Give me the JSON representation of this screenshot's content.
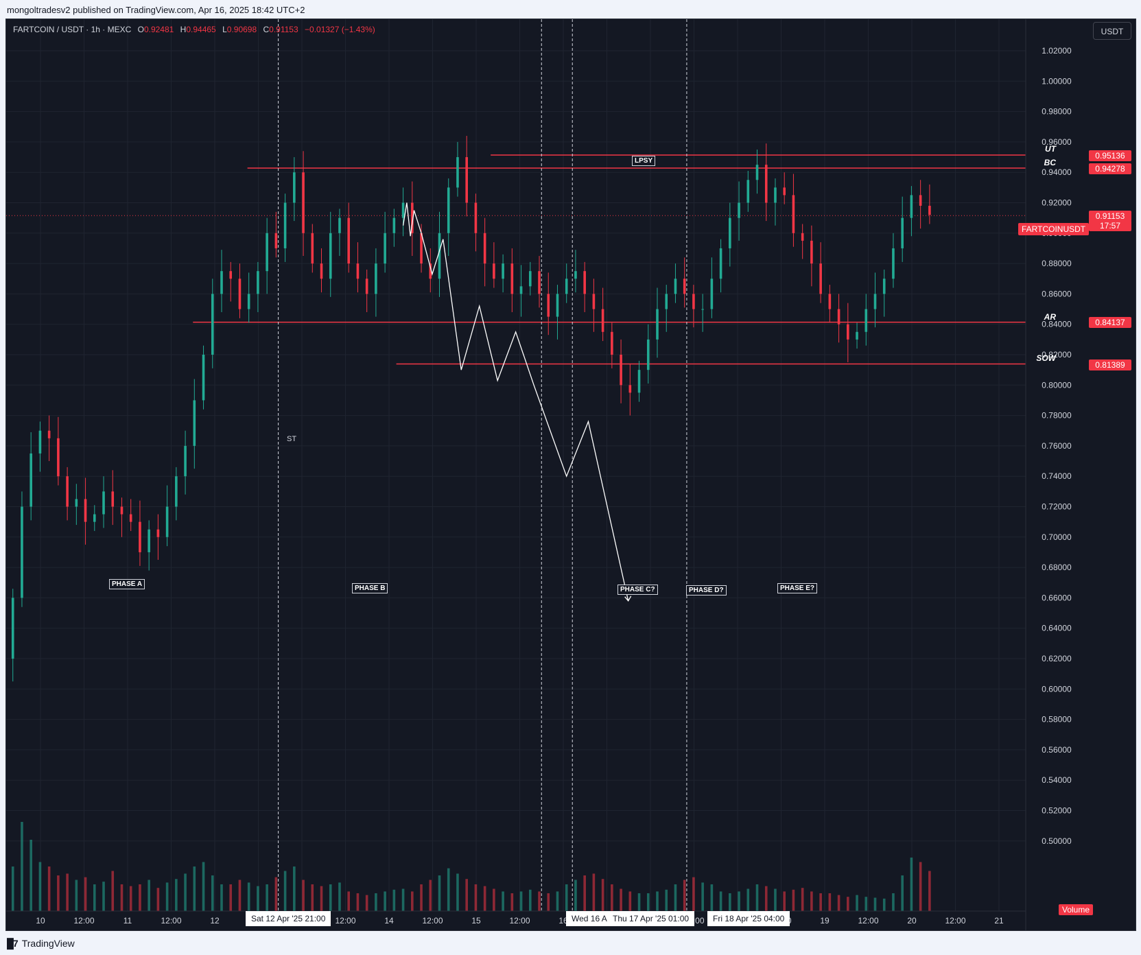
{
  "header": {
    "published": "mongoltradesv2 published on TradingView.com, Apr 16, 2025 18:42 UTC+2"
  },
  "footer": {
    "brand": "TradingView",
    "logo_icon": "tradingview-logo-icon"
  },
  "legend": {
    "symbol": "FARTCOIN / USDT · 1h · MEXC",
    "o_label": "O",
    "o_value": "0.92481",
    "h_label": "H",
    "h_value": "0.94465",
    "l_label": "L",
    "l_value": "0.90698",
    "c_label": "C",
    "c_value": "0.91153",
    "change": "−0.01327 (−1.43%)"
  },
  "currency_button": "USDT",
  "volume_label": "Volume",
  "current_price": {
    "symbol_label": "FARTCOINUSDT",
    "price": "0.91153",
    "countdown": "17:57",
    "value": 0.91153
  },
  "levels": [
    {
      "name": "UT",
      "price": "0.95136",
      "value": 0.95136
    },
    {
      "name": "BC",
      "price": "0.94278",
      "value": 0.94278
    },
    {
      "name": "AR",
      "price": "0.84137",
      "value": 0.84137
    },
    {
      "name": "SOW",
      "price": "0.81389",
      "value": 0.81389
    }
  ],
  "annotations": {
    "lpsy": "LPSY",
    "st": "ST",
    "phases": [
      "PHASE A",
      "PHASE B",
      "PHASE C?",
      "PHASE D?",
      "PHASE E?"
    ]
  },
  "time_cursor_labels": [
    "Sat 12 Apr '25   21:00",
    "Wed 16 A",
    "Thu 17 Apr '25   01:00",
    "Fri 18 Apr '25   04:00"
  ],
  "colors": {
    "up": "#22ab94",
    "down": "#f23645",
    "level_line": "#f23645",
    "background": "#141823",
    "projection": "#ffffff"
  },
  "chart_data": {
    "type": "candlestick",
    "symbol": "FARTCOIN / USDT",
    "interval": "1h",
    "exchange": "MEXC",
    "ylim": [
      0.49,
      1.03
    ],
    "y_ticks": [
      "1.02000",
      "1.00000",
      "0.98000",
      "0.96000",
      "0.94000",
      "0.92000",
      "0.90000",
      "0.88000",
      "0.86000",
      "0.84000",
      "0.82000",
      "0.80000",
      "0.78000",
      "0.76000",
      "0.74000",
      "0.72000",
      "0.70000",
      "0.68000",
      "0.66000",
      "0.64000",
      "0.62000",
      "0.60000",
      "0.58000",
      "0.56000",
      "0.54000",
      "0.52000",
      "0.50000"
    ],
    "x_ticks": [
      "10",
      "12:00",
      "11",
      "12:00",
      "12",
      "12:00",
      "13",
      "12:00",
      "14",
      "12:00",
      "15",
      "12:00",
      "16",
      "12:00",
      "17",
      "12:00",
      "18",
      "12:00",
      "19",
      "12:00",
      "20",
      "12:00",
      "21"
    ],
    "x_domain_hours": [
      -17,
      275
    ],
    "candle_hours_start": -17,
    "closes": [
      0.555,
      0.57,
      0.62,
      0.66,
      0.72,
      0.755,
      0.77,
      0.765,
      0.74,
      0.72,
      0.725,
      0.71,
      0.715,
      0.73,
      0.72,
      0.715,
      0.71,
      0.69,
      0.705,
      0.7,
      0.72,
      0.74,
      0.76,
      0.79,
      0.82,
      0.86,
      0.875,
      0.87,
      0.85,
      0.86,
      0.875,
      0.9,
      0.89,
      0.92,
      0.94,
      0.9,
      0.88,
      0.87,
      0.9,
      0.91,
      0.88,
      0.87,
      0.86,
      0.88,
      0.9,
      0.91,
      0.92,
      0.9,
      0.88,
      0.87,
      0.9,
      0.93,
      0.95,
      0.92,
      0.9,
      0.88,
      0.87,
      0.88,
      0.86,
      0.865,
      0.875,
      0.86,
      0.845,
      0.86,
      0.87,
      0.875,
      0.86,
      0.85,
      0.835,
      0.82,
      0.8,
      0.795,
      0.81,
      0.83,
      0.85,
      0.86,
      0.87,
      0.86,
      0.85,
      0.85,
      0.87,
      0.89,
      0.91,
      0.92,
      0.935,
      0.945,
      0.92,
      0.93,
      0.925,
      0.9,
      0.895,
      0.88,
      0.86,
      0.85,
      0.84,
      0.83,
      0.835,
      0.85,
      0.86,
      0.87,
      0.89,
      0.91,
      0.925,
      0.918,
      0.912
    ],
    "volume_unit": "relative",
    "volumes": [
      0.4,
      0.9,
      0.6,
      0.5,
      1.0,
      0.8,
      0.55,
      0.5,
      0.4,
      0.42,
      0.35,
      0.38,
      0.3,
      0.33,
      0.45,
      0.3,
      0.28,
      0.3,
      0.35,
      0.26,
      0.32,
      0.36,
      0.42,
      0.5,
      0.55,
      0.4,
      0.3,
      0.3,
      0.35,
      0.32,
      0.28,
      0.3,
      0.38,
      0.45,
      0.5,
      0.35,
      0.3,
      0.28,
      0.3,
      0.32,
      0.22,
      0.2,
      0.18,
      0.2,
      0.22,
      0.24,
      0.25,
      0.22,
      0.3,
      0.35,
      0.4,
      0.48,
      0.42,
      0.36,
      0.3,
      0.28,
      0.25,
      0.22,
      0.2,
      0.22,
      0.24,
      0.22,
      0.2,
      0.22,
      0.3,
      0.35,
      0.4,
      0.42,
      0.36,
      0.3,
      0.25,
      0.22,
      0.2,
      0.2,
      0.22,
      0.24,
      0.3,
      0.35,
      0.38,
      0.32,
      0.3,
      0.22,
      0.2,
      0.22,
      0.25,
      0.3,
      0.28,
      0.25,
      0.22,
      0.24,
      0.26,
      0.22,
      0.2,
      0.2,
      0.18,
      0.16,
      0.18,
      0.16,
      0.15,
      0.14,
      0.2,
      0.4,
      0.6,
      0.55,
      0.45
    ],
    "projection_path": [
      [
        98,
        0.905
      ],
      [
        99,
        0.92
      ],
      [
        100,
        0.898
      ],
      [
        101,
        0.915
      ],
      [
        103,
        0.9
      ],
      [
        106,
        0.873
      ],
      [
        109,
        0.896
      ],
      [
        114,
        0.81
      ],
      [
        119,
        0.852
      ],
      [
        124,
        0.803
      ],
      [
        129,
        0.835
      ],
      [
        134,
        0.8
      ],
      [
        143,
        0.74
      ],
      [
        149,
        0.776
      ],
      [
        160,
        0.658
      ]
    ],
    "vertical_markers_hours": [
      65.5,
      138,
      146.5,
      178
    ]
  }
}
